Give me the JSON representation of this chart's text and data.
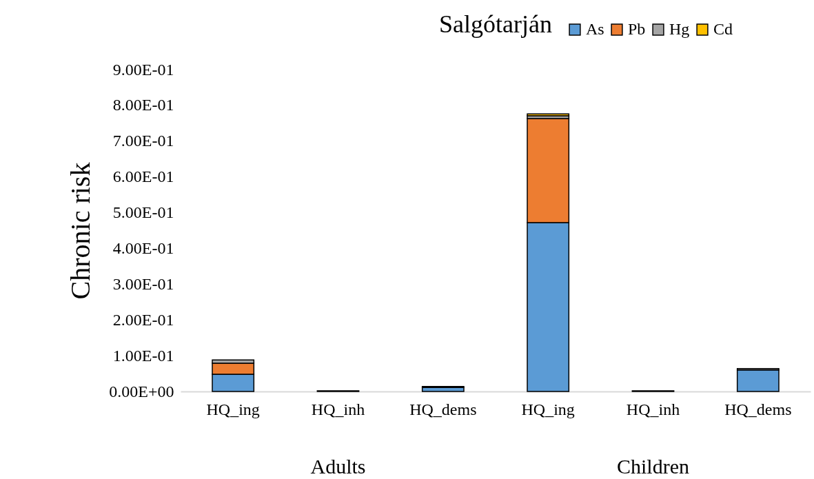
{
  "chart_data": {
    "type": "bar",
    "title": "Salgótarján",
    "ylabel": "Chronic risk",
    "categories": [
      "HQ_ing",
      "HQ_inh",
      "HQ_dems",
      "HQ_ing",
      "HQ_inh",
      "HQ_dems"
    ],
    "annotations": [
      "Adults",
      "Children"
    ],
    "stacked": true,
    "series": [
      {
        "name": "As",
        "color": "#5b9bd5",
        "values": [
          0.048,
          0.002,
          0.011,
          0.472,
          0.002,
          0.06
        ]
      },
      {
        "name": "Pb",
        "color": "#ed7d31",
        "values": [
          0.031,
          null,
          null,
          0.291,
          null,
          null
        ]
      },
      {
        "name": "Hg",
        "color": "#a5a5a5",
        "values": [
          0.009,
          null,
          0.003,
          0.008,
          null,
          0.004
        ]
      },
      {
        "name": "Cd",
        "color": "#ffc000",
        "values": [
          null,
          null,
          null,
          0.005,
          null,
          null
        ]
      }
    ],
    "ylim": [
      0,
      0.9
    ],
    "yticks": [
      {
        "value": 0,
        "label": "0.00E+00"
      },
      {
        "value": 0.1,
        "label": "1.00E-01"
      },
      {
        "value": 0.2,
        "label": "2.00E-01"
      },
      {
        "value": 0.3,
        "label": "3.00E-01"
      },
      {
        "value": 0.4,
        "label": "4.00E-01"
      },
      {
        "value": 0.5,
        "label": "5.00E-01"
      },
      {
        "value": 0.6,
        "label": "6.00E-01"
      },
      {
        "value": 0.7,
        "label": "7.00E-01"
      },
      {
        "value": 0.8,
        "label": "8.00E-01"
      },
      {
        "value": 0.9,
        "label": "9.00E-01"
      }
    ],
    "grid": false,
    "legend": "top right"
  }
}
